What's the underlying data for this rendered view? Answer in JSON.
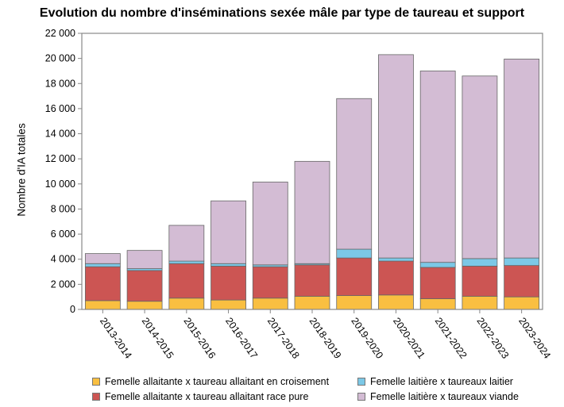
{
  "chart_data": {
    "type": "bar",
    "stacked": true,
    "title": "Evolution du nombre d'inséminations sexée mâle par type de taureau et support",
    "xlabel": "",
    "ylabel": "Nombre d'IA totales",
    "ylim": [
      0,
      22000
    ],
    "yticks": [
      "0",
      "2 000",
      "4 000",
      "6 000",
      "8 000",
      "10 000",
      "12 000",
      "14 000",
      "16 000",
      "18 000",
      "20 000",
      "22 000"
    ],
    "ytick_values": [
      0,
      2000,
      4000,
      6000,
      8000,
      10000,
      12000,
      14000,
      16000,
      18000,
      20000,
      22000
    ],
    "categories": [
      "2013-2014",
      "2014-2015",
      "2015-2016",
      "2016-2017",
      "2017-2018",
      "2018-2019",
      "2019-2020",
      "2020-2021",
      "2021-2022",
      "2022-2023",
      "2023-2024"
    ],
    "series": [
      {
        "name": "Femelle allaitante x taureau allaitant en croisement",
        "color": "#f9bf41",
        "values": [
          700,
          650,
          900,
          750,
          900,
          1050,
          1100,
          1150,
          850,
          1050,
          1000
        ]
      },
      {
        "name": "Femelle allaitante x taureau allaitant race pure",
        "color": "#cc5553",
        "values": [
          2700,
          2450,
          2750,
          2700,
          2500,
          2500,
          3000,
          2700,
          2500,
          2400,
          2500
        ]
      },
      {
        "name": "Femelle laitière x taureaux laitier",
        "color": "#7cc8e6",
        "values": [
          250,
          150,
          200,
          200,
          150,
          100,
          700,
          250,
          400,
          600,
          600
        ]
      },
      {
        "name": "Femelle laitière x taureaux viande",
        "color": "#d3bcd4",
        "values": [
          800,
          1450,
          2850,
          5000,
          6600,
          8150,
          12000,
          16200,
          15250,
          14550,
          15850
        ]
      }
    ],
    "grid": false,
    "legend_position": "bottom"
  }
}
